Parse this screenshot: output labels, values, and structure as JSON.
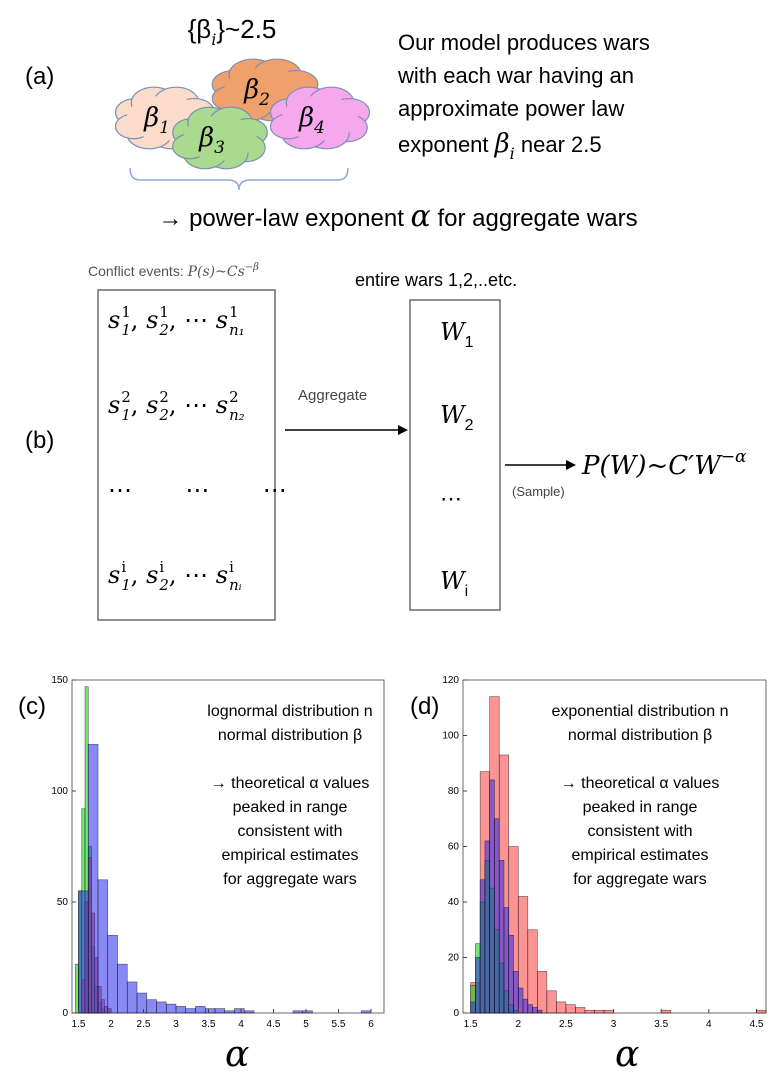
{
  "panel_a": {
    "label": "(a)",
    "set_formula": [
      "{β",
      "i",
      "}~2.5"
    ],
    "clouds": [
      [
        "β",
        "1"
      ],
      [
        "β",
        "2"
      ],
      [
        "β",
        "3"
      ],
      [
        "β",
        "4"
      ]
    ],
    "description": [
      "Our model produces wars",
      "with each war having an",
      "approximate power law"
    ],
    "description_last": [
      "exponent ",
      "β",
      "i",
      " near 2.5"
    ],
    "conclusion": [
      "→ power-law exponent ",
      "α",
      " for aggregate wars"
    ]
  },
  "panel_b": {
    "label": "(b)",
    "conflict_caption": [
      "Conflict events: ",
      "P(s)~Cs",
      "−β"
    ],
    "wars_caption": "entire wars 1,2,..etc.",
    "matrix_rows": [
      [
        {
          "base": "s",
          "sup": "1",
          "sub": "1"
        },
        ", ",
        {
          "base": "s",
          "sup": "1",
          "sub": "2"
        },
        ", ⋯ ",
        {
          "base": "s",
          "sup": "1",
          "sub": "n₁"
        }
      ],
      [
        {
          "base": "s",
          "sup": "2",
          "sub": "1"
        },
        ", ",
        {
          "base": "s",
          "sup": "2",
          "sub": "2"
        },
        ", ⋯ ",
        {
          "base": "s",
          "sup": "2",
          "sub": "n₂"
        }
      ],
      [
        "⋯       ⋯       ⋯"
      ],
      [
        {
          "base": "s",
          "sup": "i",
          "sub": "1"
        },
        ", ",
        {
          "base": "s",
          "sup": "i",
          "sub": "2"
        },
        ", ⋯ ",
        {
          "base": "s",
          "sup": "i",
          "sub": "nᵢ"
        }
      ]
    ],
    "aggregate_label": "Aggregate",
    "wars": [
      [
        "W",
        "1"
      ],
      [
        "W",
        "2"
      ],
      "⋯",
      [
        "W",
        "i"
      ]
    ],
    "sample_label": "(Sample)",
    "result": [
      "P(W)~C′W",
      "−α"
    ]
  },
  "chart_data": [
    {
      "type": "histogram",
      "label": "(c)",
      "x_label": "α",
      "xlim": [
        1.4,
        6.2
      ],
      "ylim": [
        0,
        150
      ],
      "xticks": [
        1.5,
        2,
        2.5,
        3,
        3.5,
        4,
        4.5,
        5,
        5.5,
        6
      ],
      "yticks": [
        0,
        50,
        100,
        150
      ],
      "annotations": [
        "lognormal distribution n",
        "normal distribution β",
        "→ theoretical α values",
        "peaked in range",
        "consistent with",
        "empirical estimates",
        "for aggregate wars"
      ],
      "series": [
        {
          "color": "rgba(0,210,0,0.55)",
          "bins": [
            1.45,
            1.5,
            1.55,
            1.6,
            1.65,
            1.7,
            1.75,
            1.8,
            1.85,
            1.9
          ],
          "values": [
            22,
            55,
            92,
            147,
            75,
            30,
            12,
            5,
            2
          ]
        },
        {
          "color": "rgba(240,70,60,0.6)",
          "bins": [
            1.55,
            1.6,
            1.65,
            1.7,
            1.75,
            1.8,
            1.85,
            1.9,
            1.95,
            2.0
          ],
          "values": [
            15,
            50,
            70,
            45,
            25,
            12,
            6,
            3,
            2
          ]
        },
        {
          "color": "rgba(40,40,235,0.55)",
          "bins": [
            1.5,
            1.65,
            1.8,
            1.95,
            2.1,
            2.25,
            2.4,
            2.55,
            2.7,
            2.85,
            3.0,
            3.15,
            3.3,
            3.45,
            3.6,
            3.75,
            3.9,
            4.05,
            4.2,
            4.35,
            4.5,
            4.65,
            4.8,
            4.95,
            5.1,
            5.25,
            5.4,
            5.55,
            5.7,
            5.85,
            6.0
          ],
          "values": [
            55,
            121,
            60,
            35,
            22,
            14,
            9,
            6,
            5,
            4,
            3,
            2,
            3,
            2,
            2,
            1,
            2,
            1,
            0,
            0,
            0,
            0,
            1,
            1,
            0,
            0,
            0,
            0,
            0,
            1
          ]
        }
      ]
    },
    {
      "type": "histogram",
      "label": "(d)",
      "x_label": "α",
      "xlim": [
        1.42,
        4.6
      ],
      "ylim": [
        0,
        120
      ],
      "xticks": [
        1.5,
        2,
        2.5,
        3,
        3.5,
        4,
        4.5
      ],
      "yticks": [
        0,
        20,
        40,
        60,
        80,
        100,
        120
      ],
      "annotations": [
        "exponential distribution n",
        "normal distribution β",
        "→ theoretical α values",
        "peaked in range",
        "consistent with",
        "empirical estimates",
        "for aggregate wars"
      ],
      "series": [
        {
          "color": "rgba(250,60,60,0.55)",
          "bins": [
            1.5,
            1.6,
            1.7,
            1.8,
            1.9,
            2.0,
            2.1,
            2.2,
            2.3,
            2.4,
            2.5,
            2.6,
            2.7,
            2.8,
            2.9,
            3.0,
            3.1,
            3.2,
            3.3,
            3.4,
            3.5,
            3.6,
            3.7,
            3.8,
            3.9,
            4.0,
            4.1,
            4.2,
            4.3,
            4.4,
            4.5,
            4.6
          ],
          "values": [
            11,
            87,
            114,
            93,
            60,
            42,
            30,
            15,
            8,
            4,
            3,
            2,
            1,
            1,
            1,
            0,
            0,
            0,
            0,
            0,
            1,
            0,
            0,
            0,
            0,
            0,
            0,
            0,
            0,
            0,
            1
          ]
        },
        {
          "color": "rgba(0,210,0,0.55)",
          "bins": [
            1.5,
            1.55,
            1.6,
            1.65,
            1.7,
            1.75,
            1.8,
            1.85,
            1.9,
            1.95,
            2.0
          ],
          "values": [
            10,
            25,
            40,
            55,
            45,
            30,
            18,
            8,
            3,
            1
          ]
        },
        {
          "color": "rgba(40,40,235,0.55)",
          "bins": [
            1.5,
            1.55,
            1.6,
            1.65,
            1.7,
            1.75,
            1.8,
            1.85,
            1.9,
            1.95,
            2.0,
            2.05,
            2.1,
            2.15,
            2.2,
            2.25
          ],
          "values": [
            4,
            20,
            48,
            62,
            84,
            70,
            55,
            38,
            28,
            15,
            9,
            5,
            3,
            2,
            1
          ]
        }
      ]
    }
  ]
}
